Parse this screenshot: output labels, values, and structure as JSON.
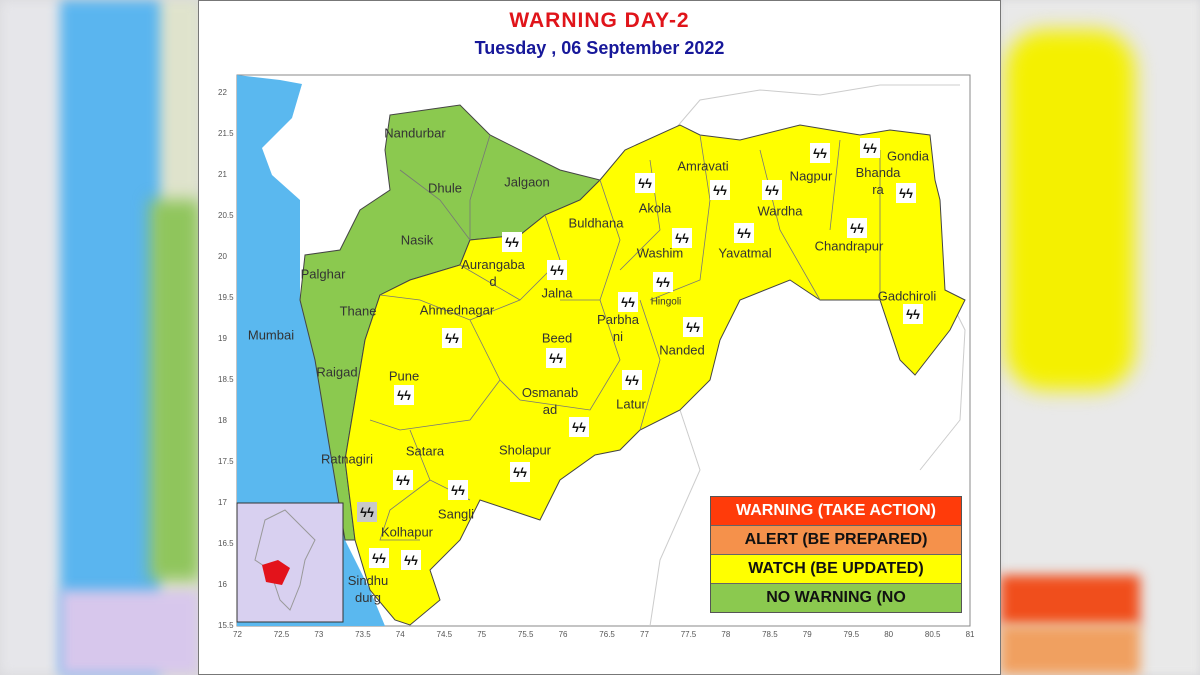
{
  "title": "WARNING  DAY-2",
  "subtitle": "Tuesday ,  06 September 2022",
  "colors": {
    "warning": "#ff3b0a",
    "alert": "#f5914b",
    "watch": "#ffff00",
    "no_warning": "#8bc94f",
    "sea": "#5ab8ef",
    "inset": "#d8d0f0"
  },
  "legend": [
    {
      "label": "WARNING (TAKE ACTION)",
      "color": "#ff3b0a",
      "text_color": "#ffffff"
    },
    {
      "label": "ALERT (BE PREPARED)",
      "color": "#f5914b",
      "text_color": "#111111"
    },
    {
      "label": "WATCH (BE UPDATED)",
      "color": "#ffff00",
      "text_color": "#111111"
    },
    {
      "label": "NO WARNING (NO",
      "color": "#8bc94f",
      "text_color": "#111111"
    }
  ],
  "x_ticks": [
    "72",
    "72.5",
    "73",
    "73.5",
    "74",
    "74.5",
    "75",
    "75.5",
    "76",
    "76.5",
    "77",
    "77.5",
    "78",
    "78.5",
    "79",
    "79.5",
    "80",
    "80.5",
    "81"
  ],
  "y_ticks": [
    "22",
    "21.5",
    "21",
    "20.5",
    "20",
    "19.5",
    "19",
    "18.5",
    "18",
    "17.5",
    "17",
    "16.5",
    "16",
    "15.5"
  ],
  "districts": [
    {
      "name": "Nandurbar",
      "status": "no_warning"
    },
    {
      "name": "Dhule",
      "status": "no_warning"
    },
    {
      "name": "Jalgaon",
      "status": "no_warning"
    },
    {
      "name": "Nasik",
      "status": "no_warning"
    },
    {
      "name": "Palghar",
      "status": "no_warning"
    },
    {
      "name": "Thane",
      "status": "no_warning"
    },
    {
      "name": "Mumbai",
      "status": "no_warning"
    },
    {
      "name": "Raigad",
      "status": "no_warning"
    },
    {
      "name": "Ratnagiri",
      "status": "no_warning"
    },
    {
      "name": "Pune",
      "status": "watch"
    },
    {
      "name": "Ahmednagar",
      "status": "watch"
    },
    {
      "name": "Aurangaba\nd",
      "status": "watch"
    },
    {
      "name": "Jalna",
      "status": "watch"
    },
    {
      "name": "Beed",
      "status": "watch"
    },
    {
      "name": "Osmanab\nad",
      "status": "watch"
    },
    {
      "name": "Latur",
      "status": "watch"
    },
    {
      "name": "Parbha\nni",
      "status": "watch"
    },
    {
      "name": "Hingoli",
      "status": "watch"
    },
    {
      "name": "Nanded",
      "status": "watch"
    },
    {
      "name": "Washim",
      "status": "watch"
    },
    {
      "name": "Akola",
      "status": "watch"
    },
    {
      "name": "Buldhana",
      "status": "watch"
    },
    {
      "name": "Amravati",
      "status": "watch"
    },
    {
      "name": "Nagpur",
      "status": "watch"
    },
    {
      "name": "Bhanda\nra",
      "status": "watch"
    },
    {
      "name": "Gondia",
      "status": "watch"
    },
    {
      "name": "Wardha",
      "status": "watch"
    },
    {
      "name": "Yavatmal",
      "status": "watch"
    },
    {
      "name": "Chandrapur",
      "status": "watch"
    },
    {
      "name": "Gadchiroli",
      "status": "watch"
    },
    {
      "name": "Sholapur",
      "status": "watch"
    },
    {
      "name": "Satara",
      "status": "watch"
    },
    {
      "name": "Sangli",
      "status": "watch"
    },
    {
      "name": "Kolhapur",
      "status": "watch"
    },
    {
      "name": "Sindhu\ndurg",
      "status": "watch"
    }
  ],
  "icons": {
    "thunderstorm": "thunderstorm-lightning-icon",
    "symbol": "ϟϟ"
  }
}
